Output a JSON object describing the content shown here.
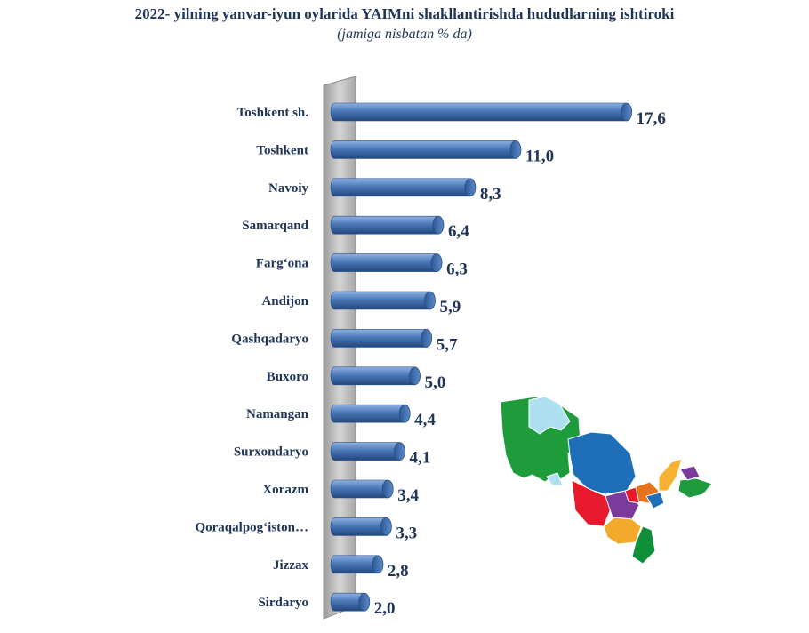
{
  "chart_data": {
    "type": "bar",
    "orientation": "horizontal",
    "title": "2022- yilning yanvar-iyun oylarida YAIMni shakllantirishda hududlarning ishtiroki",
    "subtitle": "(jamiga nisbatan % da)",
    "categories": [
      "Toshkent sh.",
      "Toshkent",
      "Navoiy",
      "Samarqand",
      "Farg‘ona",
      "Andijon",
      "Qashqadaryo",
      "Buxoro",
      "Namangan",
      "Surxondaryo",
      "Xorazm",
      "Qoraqalpog‘iston…",
      "Jizzax",
      "Sirdaryo"
    ],
    "values": [
      17.6,
      11.0,
      8.3,
      6.4,
      6.3,
      5.9,
      5.7,
      5.0,
      4.4,
      4.1,
      3.4,
      3.3,
      2.8,
      2.0
    ],
    "value_labels": [
      "17,6",
      "11,0",
      "8,3",
      "6,4",
      "6,3",
      "5,9",
      "5,7",
      "5,0",
      "4,4",
      "4,1",
      "3,4",
      "3,3",
      "2,8",
      "2,0"
    ],
    "xlim": [
      0,
      18
    ],
    "grid": false,
    "bar_color": "#4a78b8"
  },
  "map": {
    "colors": [
      "#1e9c3c",
      "#aee0f2",
      "#1f6fb8",
      "#e8192c",
      "#7a3b9a",
      "#f3a92b",
      "#e8721c",
      "#0f8f3a",
      "#f5b233"
    ]
  }
}
